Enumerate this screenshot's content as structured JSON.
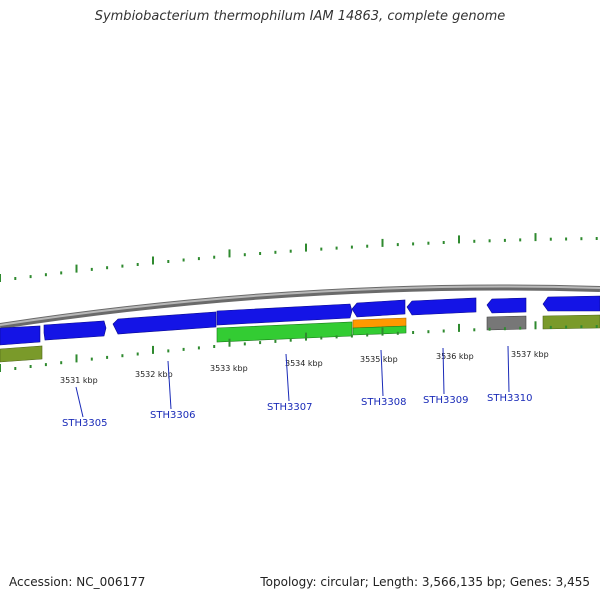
{
  "title": "Symbiobacterium thermophilum IAM 14863, complete genome",
  "footer": {
    "accession": "Accession: NC_006177",
    "summary": "Topology: circular; Length: 3,566,135 bp; Genes: 3,455"
  },
  "colors": {
    "gene_forward": "#1414e6",
    "cds_green": "#33cc33",
    "cds_orange": "#ff9900",
    "cds_olive": "#7a9a2a",
    "cds_gray": "#777777",
    "backbone": "#8c8c8c",
    "tick": "#2f8a2f",
    "label": "#1a2bb8"
  },
  "scale": {
    "unit": "kbp",
    "ticks": [
      {
        "kbp": 3531,
        "label": "3531 kbp"
      },
      {
        "kbp": 3532,
        "label": "3532 kbp"
      },
      {
        "kbp": 3533,
        "label": "3533 kbp"
      },
      {
        "kbp": 3534,
        "label": "3534 kbp"
      },
      {
        "kbp": 3535,
        "label": "3535 kbp"
      },
      {
        "kbp": 3536,
        "label": "3536 kbp"
      },
      {
        "kbp": 3537,
        "label": "3537 kbp"
      }
    ]
  },
  "genes": [
    {
      "id": "STH3305",
      "label": "STH3305"
    },
    {
      "id": "STH3306",
      "label": "STH3306"
    },
    {
      "id": "STH3307",
      "label": "STH3307"
    },
    {
      "id": "STH3308",
      "label": "STH3308"
    },
    {
      "id": "STH3309",
      "label": "STH3309"
    },
    {
      "id": "STH3310",
      "label": "STH3310"
    }
  ]
}
